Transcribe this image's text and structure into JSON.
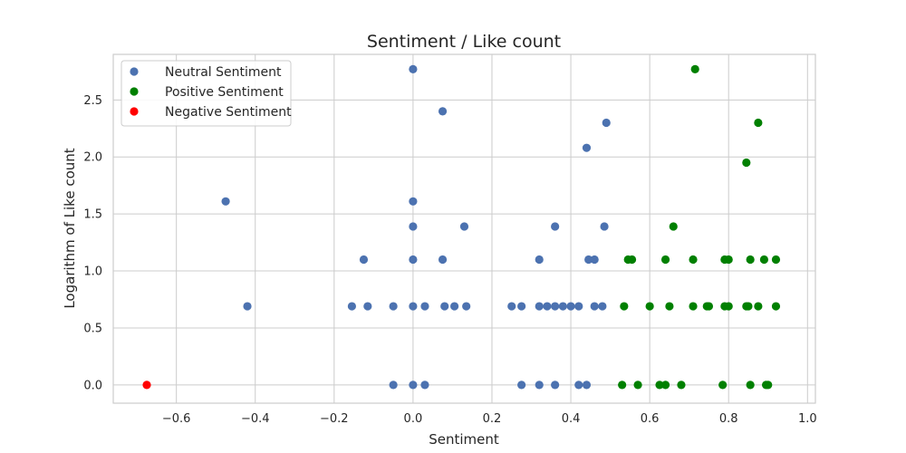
{
  "chart_data": {
    "type": "scatter",
    "title": "Sentiment / Like count",
    "xlabel": "Sentiment",
    "ylabel": "Logarithm of Like count",
    "xlim": [
      -0.76,
      1.02
    ],
    "ylim": [
      -0.16,
      2.9
    ],
    "xticks": [
      -0.6,
      -0.4,
      -0.2,
      0.0,
      0.2,
      0.4,
      0.6,
      0.8,
      1.0
    ],
    "xtick_labels": [
      "−0.6",
      "−0.4",
      "−0.2",
      "0.0",
      "0.2",
      "0.4",
      "0.6",
      "0.8",
      "1.0"
    ],
    "yticks": [
      0.0,
      0.5,
      1.0,
      1.5,
      2.0,
      2.5
    ],
    "ytick_labels": [
      "0.0",
      "0.5",
      "1.0",
      "1.5",
      "2.0",
      "2.5"
    ],
    "grid": true,
    "legend_position": "top-left",
    "series": [
      {
        "name": "Neutral Sentiment",
        "color": "#4c72b0",
        "points": [
          [
            0.0,
            2.77
          ],
          [
            0.075,
            2.4
          ],
          [
            0.49,
            2.3
          ],
          [
            0.44,
            2.08
          ],
          [
            -0.475,
            1.61
          ],
          [
            0.0,
            1.61
          ],
          [
            0.0,
            1.39
          ],
          [
            0.13,
            1.39
          ],
          [
            0.36,
            1.39
          ],
          [
            0.485,
            1.39
          ],
          [
            -0.125,
            1.1
          ],
          [
            0.0,
            1.1
          ],
          [
            0.075,
            1.1
          ],
          [
            0.32,
            1.1
          ],
          [
            0.445,
            1.1
          ],
          [
            0.46,
            1.1
          ],
          [
            -0.42,
            0.69
          ],
          [
            -0.155,
            0.69
          ],
          [
            -0.115,
            0.69
          ],
          [
            -0.05,
            0.69
          ],
          [
            0.0,
            0.69
          ],
          [
            0.03,
            0.69
          ],
          [
            0.08,
            0.69
          ],
          [
            0.105,
            0.69
          ],
          [
            0.135,
            0.69
          ],
          [
            0.25,
            0.69
          ],
          [
            0.275,
            0.69
          ],
          [
            0.32,
            0.69
          ],
          [
            0.34,
            0.69
          ],
          [
            0.36,
            0.69
          ],
          [
            0.38,
            0.69
          ],
          [
            0.4,
            0.69
          ],
          [
            0.42,
            0.69
          ],
          [
            0.46,
            0.69
          ],
          [
            0.48,
            0.69
          ],
          [
            -0.05,
            0.0
          ],
          [
            0.0,
            0.0
          ],
          [
            0.03,
            0.0
          ],
          [
            0.275,
            0.0
          ],
          [
            0.32,
            0.0
          ],
          [
            0.36,
            0.0
          ],
          [
            0.42,
            0.0
          ],
          [
            0.44,
            0.0
          ]
        ]
      },
      {
        "name": "Positive Sentiment",
        "color": "#008000",
        "points": [
          [
            0.715,
            2.77
          ],
          [
            0.875,
            2.3
          ],
          [
            0.845,
            1.95
          ],
          [
            0.66,
            1.39
          ],
          [
            0.545,
            1.1
          ],
          [
            0.555,
            1.1
          ],
          [
            0.64,
            1.1
          ],
          [
            0.71,
            1.1
          ],
          [
            0.79,
            1.1
          ],
          [
            0.8,
            1.1
          ],
          [
            0.855,
            1.1
          ],
          [
            0.89,
            1.1
          ],
          [
            0.92,
            1.1
          ],
          [
            0.535,
            0.69
          ],
          [
            0.6,
            0.69
          ],
          [
            0.65,
            0.69
          ],
          [
            0.71,
            0.69
          ],
          [
            0.745,
            0.69
          ],
          [
            0.75,
            0.69
          ],
          [
            0.79,
            0.69
          ],
          [
            0.8,
            0.69
          ],
          [
            0.845,
            0.69
          ],
          [
            0.85,
            0.69
          ],
          [
            0.875,
            0.69
          ],
          [
            0.92,
            0.69
          ],
          [
            0.53,
            0.0
          ],
          [
            0.57,
            0.0
          ],
          [
            0.625,
            0.0
          ],
          [
            0.64,
            0.0
          ],
          [
            0.68,
            0.0
          ],
          [
            0.785,
            0.0
          ],
          [
            0.855,
            0.0
          ],
          [
            0.895,
            0.0
          ],
          [
            0.9,
            0.0
          ]
        ]
      },
      {
        "name": "Negative Sentiment",
        "color": "#ff0000",
        "points": [
          [
            -0.675,
            0.0
          ]
        ]
      }
    ]
  }
}
